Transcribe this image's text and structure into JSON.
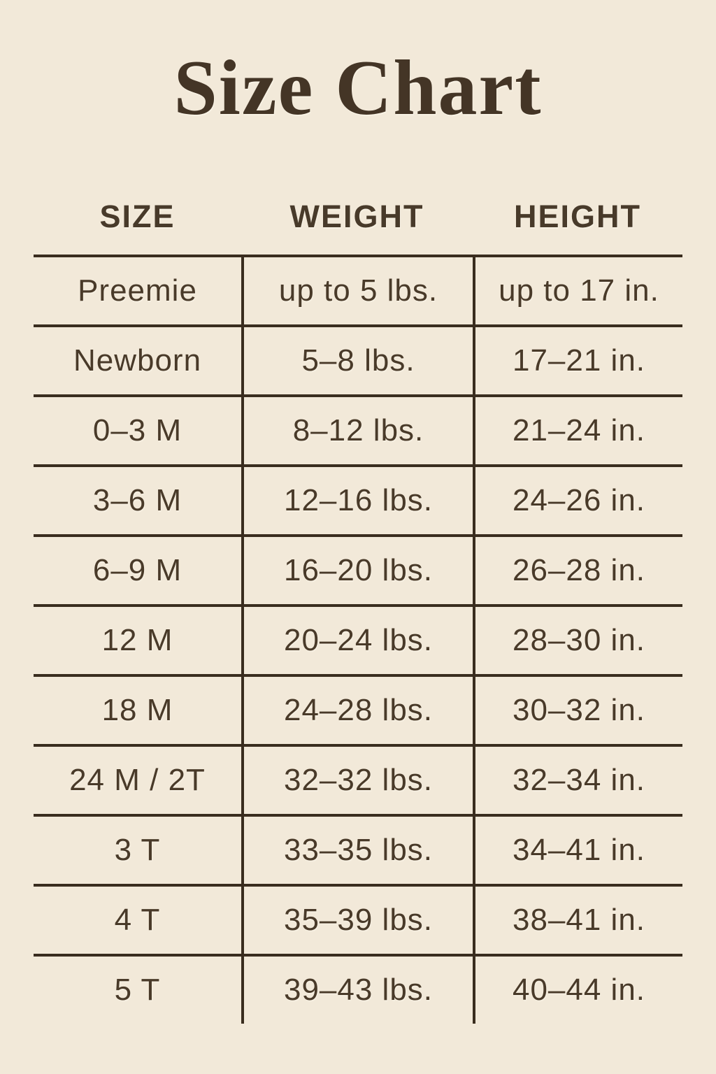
{
  "title": "Size Chart",
  "colors": {
    "background": "#f2e9d9",
    "title_text": "#443526",
    "body_text": "#493a29",
    "rule_lines": "#3a2d1f"
  },
  "chart_data": {
    "type": "table",
    "title": "Size Chart",
    "columns": [
      "SIZE",
      "WEIGHT",
      "HEIGHT"
    ],
    "rows": [
      [
        "Preemie",
        "up to 5 lbs.",
        "up to 17 in."
      ],
      [
        "Newborn",
        "5–8 lbs.",
        "17–21 in."
      ],
      [
        "0–3 M",
        "8–12 lbs.",
        "21–24 in."
      ],
      [
        "3–6 M",
        "12–16 lbs.",
        "24–26 in."
      ],
      [
        "6–9 M",
        "16–20 lbs.",
        "26–28 in."
      ],
      [
        "12 M",
        "20–24 lbs.",
        "28–30 in."
      ],
      [
        "18 M",
        "24–28 lbs.",
        "30–32 in."
      ],
      [
        "24 M / 2T",
        "32–32 lbs.",
        "32–34 in."
      ],
      [
        "3 T",
        "33–35 lbs.",
        "34–41 in."
      ],
      [
        "4 T",
        "35–39 lbs.",
        "38–41 in."
      ],
      [
        "5 T",
        "39–43 lbs.",
        "40–44 in."
      ]
    ],
    "layout": {
      "grid": "horizontal rules between rows, vertical dividers between columns in body only, no outer border, no bottom rule on last row"
    }
  }
}
